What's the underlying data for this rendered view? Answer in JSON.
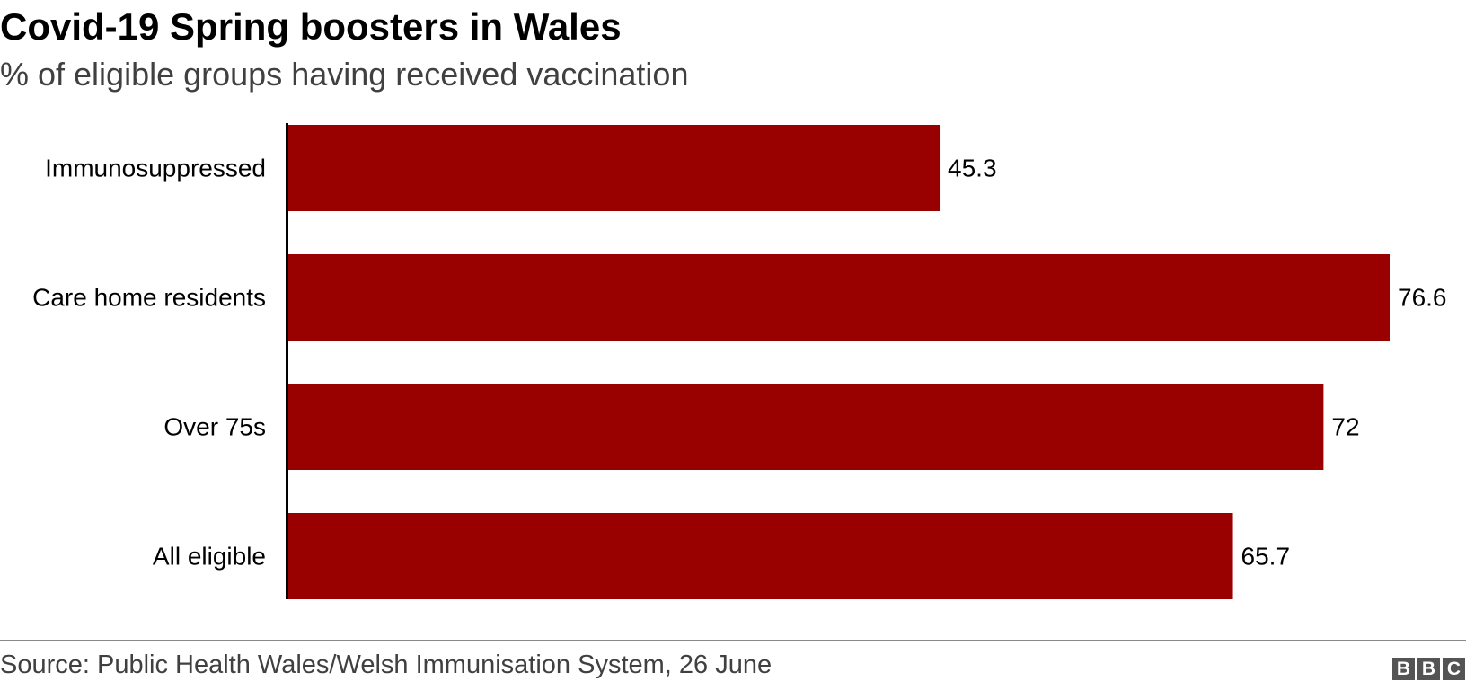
{
  "header": {
    "title": "Covid-19 Spring boosters in Wales",
    "subtitle": "% of eligible groups having received vaccination"
  },
  "footer": {
    "source": "Source: Public Health Wales/Welsh Immunisation System, 26 June",
    "logo_letters": [
      "B",
      "B",
      "C"
    ]
  },
  "colors": {
    "bar": "#990000",
    "axis": "#000000"
  },
  "chart_data": {
    "type": "bar",
    "orientation": "horizontal",
    "title": "Covid-19 Spring boosters in Wales",
    "subtitle": "% of eligible groups having received vaccination",
    "categories": [
      "Immunosuppressed",
      "Care home residents",
      "Over 75s",
      "All eligible"
    ],
    "values": [
      45.3,
      76.6,
      72,
      65.7
    ],
    "value_labels": [
      "45.3",
      "76.6",
      "72",
      "65.7"
    ],
    "xlabel": "",
    "ylabel": "",
    "xlim": [
      0,
      76.6
    ],
    "grid": false,
    "legend": "none"
  }
}
